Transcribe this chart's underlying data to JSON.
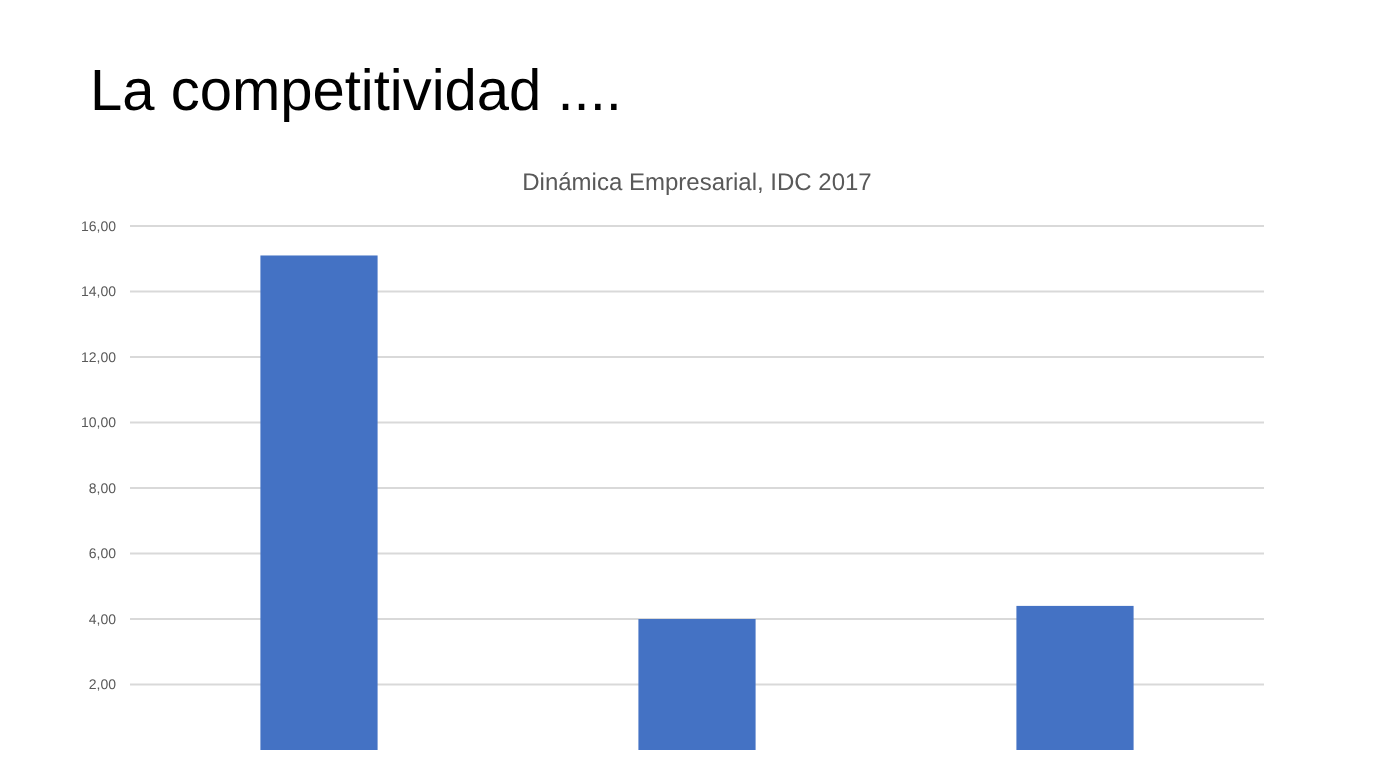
{
  "chart_data": {
    "type": "bar",
    "title": "La competitividad ....",
    "subtitle": "Dinámica Empresarial, IDC 2017",
    "categories": [
      null,
      null,
      null
    ],
    "values": [
      15.1,
      4.0,
      4.4
    ],
    "color": "#4472c4",
    "ylim": [
      0,
      16
    ],
    "yticks": [
      {
        "value": 2,
        "label": "2,00"
      },
      {
        "value": 4,
        "label": "4,00"
      },
      {
        "value": 6,
        "label": "6,00"
      },
      {
        "value": 8,
        "label": "8,00"
      },
      {
        "value": 10,
        "label": "10,00"
      },
      {
        "value": 12,
        "label": "12,00"
      },
      {
        "value": 14,
        "label": "14,00"
      },
      {
        "value": 16,
        "label": "16,00"
      }
    ],
    "grid": "y"
  }
}
